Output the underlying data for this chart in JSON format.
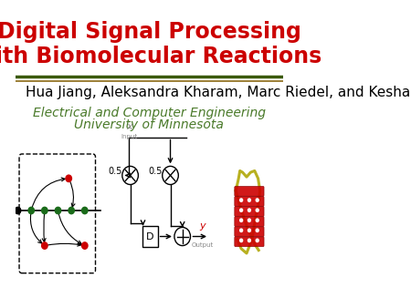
{
  "title_line1": "Digital Signal Processing",
  "title_line2": "with Biomolecular Reactions",
  "title_color": "#CC0000",
  "title_fontsize": 17,
  "author_line": "Hua Jiang, Aleksandra Kharam, Marc Riedel, and Keshab Parhi",
  "author_fontsize": 11,
  "author_color": "#000000",
  "affil_line1": "Electrical and Computer Engineering",
  "affil_line2": "University of Minnesota",
  "affil_color": "#4a7a2a",
  "affil_fontsize": 10,
  "sep_color1": "#3a5a0a",
  "sep_color2": "#8b6914",
  "background_color": "#ffffff"
}
